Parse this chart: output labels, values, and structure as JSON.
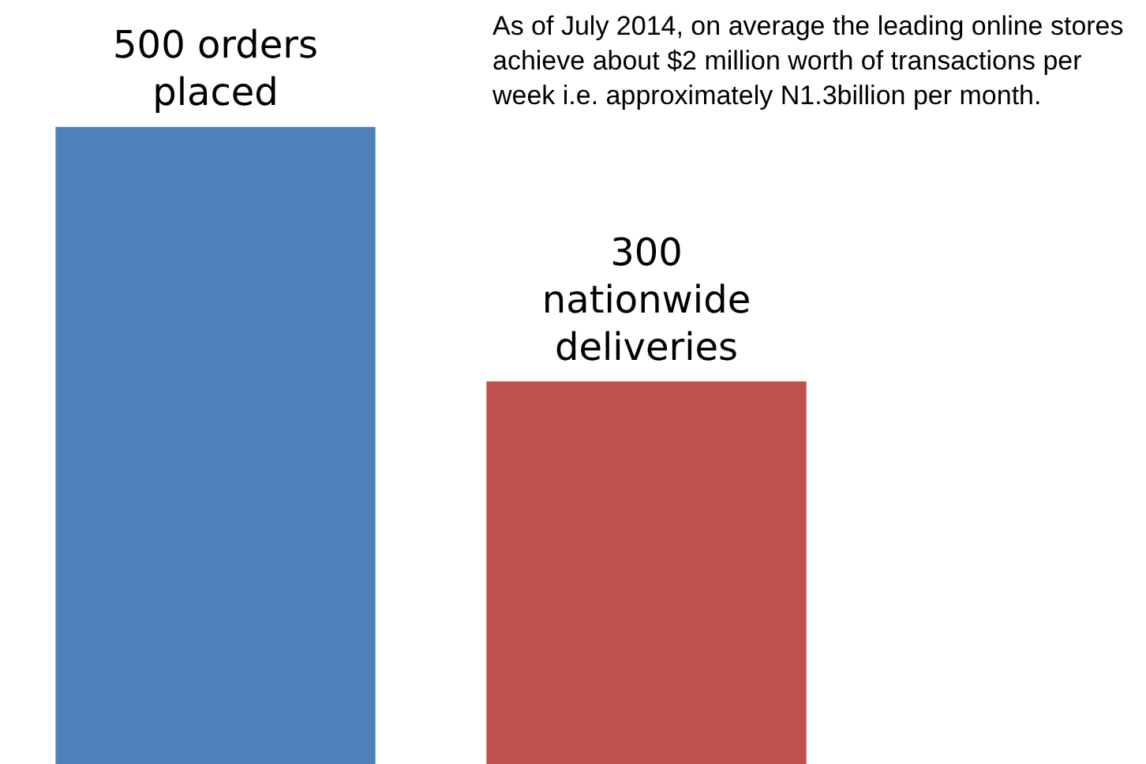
{
  "chart_data": {
    "type": "bar",
    "categories": [
      null,
      null
    ],
    "values": [
      500,
      300
    ],
    "colors": [
      "#4f81bd",
      "#c0504d"
    ],
    "value_labels": [
      "500 orders placed",
      "300 nationwide deliveries"
    ],
    "annotations": [
      "As of  July  2014, on average the leading online stores achieve about $2 million worth of  transactions per week i.e. approximately N1.3billion per month."
    ]
  }
}
